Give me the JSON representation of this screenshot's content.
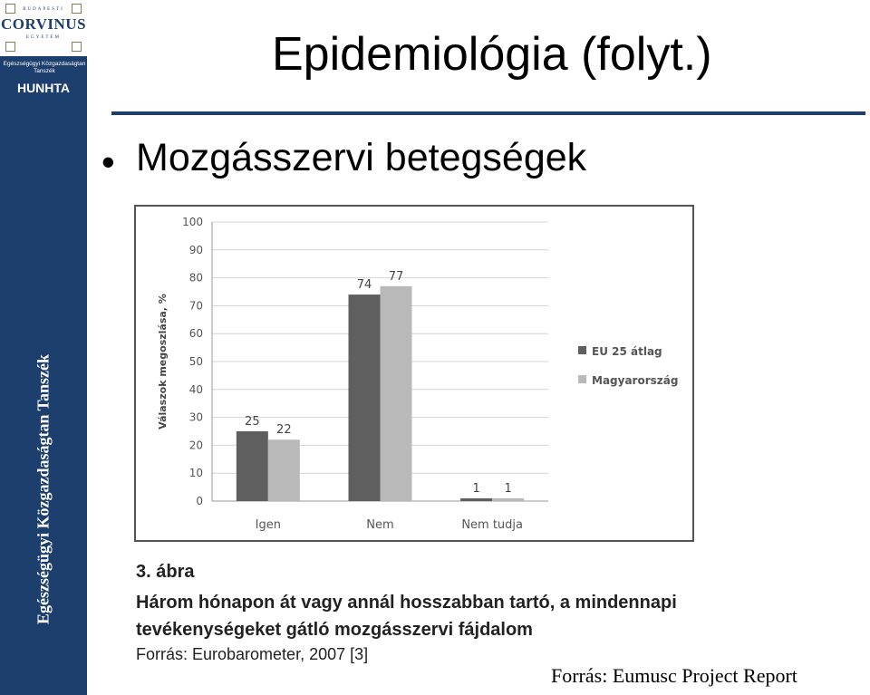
{
  "sidebar": {
    "logo_top_text": "BUDAPESTI",
    "logo_name": "CORVINUS",
    "logo_sub_text": "EGYETEM",
    "dept_text": "Egészségügyi Közgazdaságtan Tanszék",
    "hunhta": "HUNHTA",
    "vertical_label": "Egészségügyi Közgazdaságtan Tanszék"
  },
  "slide": {
    "title": "Epidemiológia (folyt.)",
    "bullet_glyph": "•",
    "bullet": "Mozgásszervi betegségek",
    "source": "Forrás: Eumusc Project Report"
  },
  "figure": {
    "number": "3. ábra",
    "caption": "Három hónapon át vagy annál hosszabban tartó, a mindennapi tevékenységeket gátló mozgásszervi fájdalom",
    "source": "Forrás: Eurobarometer, 2007 [3]"
  },
  "chart_data": {
    "type": "bar",
    "categories": [
      "Igen",
      "Nem",
      "Nem tudja"
    ],
    "series": [
      {
        "name": "EU 25 átlag",
        "values": [
          25,
          74,
          1
        ],
        "color": "#5f5f5f"
      },
      {
        "name": "Magyarország",
        "values": [
          22,
          77,
          1
        ],
        "color": "#b9b9b9"
      }
    ],
    "data_labels": [
      [
        "25",
        "74",
        "1"
      ],
      [
        "22",
        "77",
        "1"
      ]
    ],
    "ylabel": "Válaszok megoszlása, %",
    "ylim": [
      0,
      100
    ],
    "yticks": [
      "0",
      "10",
      "20",
      "30",
      "40",
      "50",
      "60",
      "70",
      "80",
      "90",
      "100"
    ],
    "grid": true,
    "legend": "right"
  }
}
